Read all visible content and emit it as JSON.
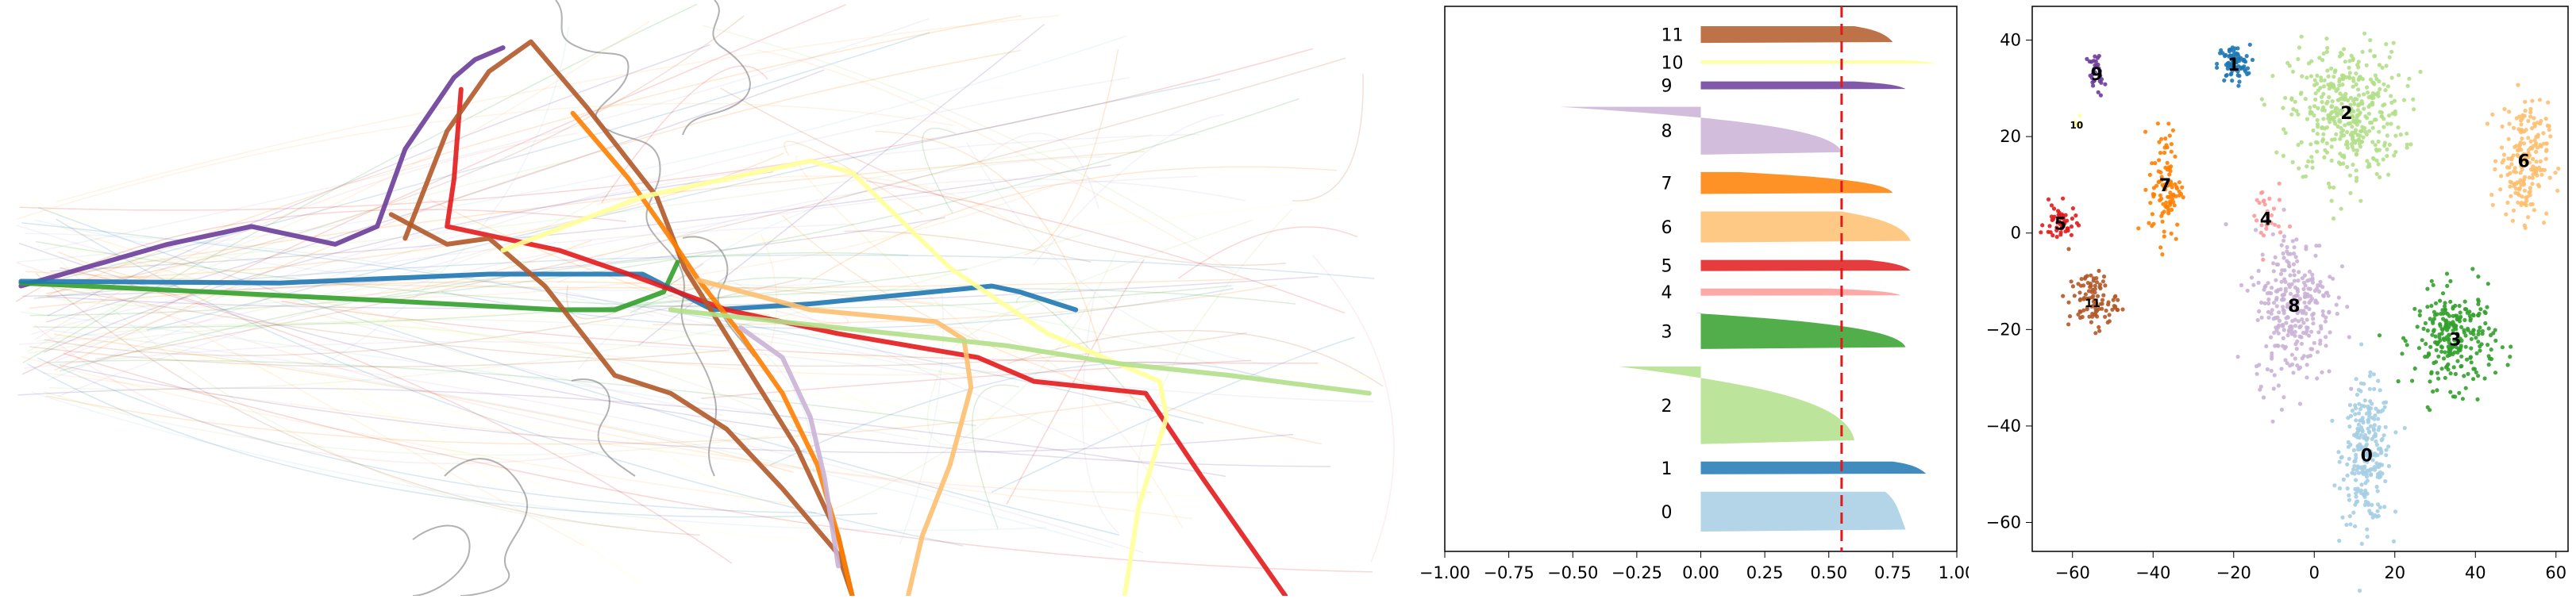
{
  "palette": {
    "0": "#a6cee3",
    "1": "#1f78b4",
    "2": "#b2df8a",
    "3": "#33a02c",
    "4": "#fb9a99",
    "5": "#e31a1c",
    "6": "#fdbf6f",
    "7": "#ff7f00",
    "8": "#cab2d6",
    "9": "#6a3d9a",
    "10": "#ffff99",
    "11": "#b15928"
  },
  "map_panel": {
    "coastline_color": "#9e9e9e",
    "highlighted_routes": [
      {
        "cluster": "9",
        "points": [
          [
            0.015,
            0.48
          ],
          [
            0.06,
            0.45
          ],
          [
            0.12,
            0.41
          ],
          [
            0.18,
            0.38
          ],
          [
            0.24,
            0.41
          ],
          [
            0.27,
            0.38
          ],
          [
            0.29,
            0.25
          ],
          [
            0.325,
            0.13
          ],
          [
            0.34,
            0.1
          ],
          [
            0.36,
            0.08
          ]
        ]
      },
      {
        "cluster": "3",
        "points": [
          [
            0.015,
            0.475
          ],
          [
            0.15,
            0.49
          ],
          [
            0.28,
            0.505
          ],
          [
            0.4,
            0.52
          ],
          [
            0.44,
            0.52
          ],
          [
            0.475,
            0.49
          ],
          [
            0.485,
            0.44
          ]
        ]
      },
      {
        "cluster": "1",
        "points": [
          [
            0.015,
            0.472
          ],
          [
            0.2,
            0.475
          ],
          [
            0.35,
            0.46
          ],
          [
            0.46,
            0.46
          ],
          [
            0.51,
            0.52
          ],
          [
            0.58,
            0.51
          ],
          [
            0.71,
            0.48
          ],
          [
            0.73,
            0.49
          ],
          [
            0.77,
            0.52
          ]
        ]
      },
      {
        "cluster": "5",
        "points": [
          [
            0.33,
            0.15
          ],
          [
            0.325,
            0.3
          ],
          [
            0.32,
            0.38
          ],
          [
            0.36,
            0.4
          ],
          [
            0.4,
            0.42
          ],
          [
            0.45,
            0.46
          ],
          [
            0.52,
            0.52
          ],
          [
            0.6,
            0.56
          ],
          [
            0.7,
            0.6
          ],
          [
            0.74,
            0.64
          ],
          [
            0.82,
            0.66
          ],
          [
            0.86,
            0.8
          ],
          [
            0.92,
            1.0
          ]
        ]
      },
      {
        "cluster": "11",
        "points": [
          [
            0.29,
            0.4
          ],
          [
            0.32,
            0.22
          ],
          [
            0.35,
            0.12
          ],
          [
            0.38,
            0.07
          ],
          [
            0.42,
            0.18
          ],
          [
            0.47,
            0.33
          ],
          [
            0.49,
            0.45
          ],
          [
            0.53,
            0.6
          ],
          [
            0.57,
            0.75
          ],
          [
            0.6,
            0.9
          ],
          [
            0.61,
            1.0
          ]
        ]
      },
      {
        "cluster": "11",
        "points": [
          [
            0.28,
            0.36
          ],
          [
            0.32,
            0.41
          ],
          [
            0.35,
            0.4
          ],
          [
            0.39,
            0.48
          ],
          [
            0.42,
            0.57
          ],
          [
            0.44,
            0.63
          ],
          [
            0.48,
            0.66
          ],
          [
            0.52,
            0.72
          ],
          [
            0.56,
            0.82
          ],
          [
            0.6,
            0.93
          ],
          [
            0.61,
            1.0
          ]
        ]
      },
      {
        "cluster": "7",
        "points": [
          [
            0.41,
            0.19
          ],
          [
            0.45,
            0.3
          ],
          [
            0.48,
            0.4
          ],
          [
            0.5,
            0.47
          ],
          [
            0.53,
            0.56
          ],
          [
            0.56,
            0.66
          ],
          [
            0.585,
            0.78
          ],
          [
            0.6,
            0.9
          ],
          [
            0.61,
            1.0
          ]
        ]
      },
      {
        "cluster": "10",
        "points": [
          [
            0.36,
            0.42
          ],
          [
            0.46,
            0.33
          ],
          [
            0.58,
            0.27
          ],
          [
            0.61,
            0.29
          ],
          [
            0.68,
            0.45
          ],
          [
            0.75,
            0.56
          ],
          [
            0.83,
            0.64
          ],
          [
            0.835,
            0.7
          ],
          [
            0.815,
            0.85
          ],
          [
            0.805,
            1.0
          ]
        ]
      },
      {
        "cluster": "6",
        "points": [
          [
            0.5,
            0.47
          ],
          [
            0.58,
            0.52
          ],
          [
            0.67,
            0.54
          ],
          [
            0.69,
            0.57
          ],
          [
            0.695,
            0.65
          ],
          [
            0.68,
            0.78
          ],
          [
            0.66,
            0.9
          ],
          [
            0.65,
            1.0
          ]
        ]
      },
      {
        "cluster": "2",
        "points": [
          [
            0.48,
            0.52
          ],
          [
            0.6,
            0.55
          ],
          [
            0.72,
            0.58
          ],
          [
            0.8,
            0.61
          ],
          [
            0.88,
            0.63
          ],
          [
            0.98,
            0.66
          ]
        ]
      },
      {
        "cluster": "8",
        "points": [
          [
            0.53,
            0.55
          ],
          [
            0.56,
            0.6
          ],
          [
            0.58,
            0.7
          ],
          [
            0.59,
            0.8
          ],
          [
            0.6,
            0.95
          ]
        ]
      }
    ]
  },
  "chart_data": [
    {
      "type": "bar",
      "subtype": "silhouette",
      "title": "",
      "xlabel": "",
      "ylabel": "",
      "xlim": [
        -1.0,
        1.0
      ],
      "x_ticks": [
        "−1.00",
        "−0.75",
        "−0.50",
        "−0.25",
        "0.00",
        "0.25",
        "0.50",
        "0.75",
        "1.00"
      ],
      "y_ticks": [],
      "average_silhouette_line": 0.55,
      "average_line_color": "#e31a1c",
      "clusters": [
        {
          "label": "0",
          "size": 100,
          "max": 0.8,
          "min": 0.72
        },
        {
          "label": "1",
          "size": 32,
          "max": 0.88,
          "min": 0.75
        },
        {
          "label": "2",
          "size": 195,
          "max": 0.6,
          "min": -0.32
        },
        {
          "label": "3",
          "size": 90,
          "max": 0.8,
          "min": -0.02
        },
        {
          "label": "4",
          "size": 18,
          "max": 0.78,
          "min": 0.5
        },
        {
          "label": "5",
          "size": 28,
          "max": 0.82,
          "min": 0.65
        },
        {
          "label": "6",
          "size": 78,
          "max": 0.82,
          "min": 0.55
        },
        {
          "label": "7",
          "size": 55,
          "max": 0.75,
          "min": 0.15
        },
        {
          "label": "8",
          "size": 120,
          "max": 0.55,
          "min": -0.55
        },
        {
          "label": "9",
          "size": 20,
          "max": 0.8,
          "min": 0.6
        },
        {
          "label": "10",
          "size": 9,
          "max": 0.92,
          "min": 0.8
        },
        {
          "label": "11",
          "size": 42,
          "max": 0.75,
          "min": 0.6
        }
      ]
    },
    {
      "type": "scatter",
      "title": "",
      "xlabel": "",
      "ylabel": "",
      "xlim": [
        -70,
        63
      ],
      "ylim": [
        -66,
        47
      ],
      "x_ticks": [
        "−60",
        "−40",
        "−20",
        "0",
        "20",
        "40",
        "60"
      ],
      "y_ticks": [
        "40",
        "20",
        "0",
        "−20",
        "−40",
        "−60"
      ],
      "x_tick_values": [
        -60,
        -40,
        -20,
        0,
        20,
        40,
        60
      ],
      "y_tick_values": [
        40,
        20,
        0,
        -20,
        -40,
        -60
      ],
      "clusters": [
        {
          "label": "0",
          "cx": 13,
          "cy": -46,
          "sx": 3,
          "sy": 7,
          "n": 260
        },
        {
          "label": "1",
          "cx": -20,
          "cy": 35,
          "sx": 2,
          "sy": 2,
          "n": 80
        },
        {
          "label": "2",
          "cx": 8,
          "cy": 25,
          "sx": 7,
          "sy": 7,
          "n": 420
        },
        {
          "label": "3",
          "cx": 35,
          "cy": -22,
          "sx": 5,
          "sy": 5,
          "n": 260
        },
        {
          "label": "4",
          "cx": -12,
          "cy": 3,
          "sx": 2,
          "sy": 4,
          "n": 30
        },
        {
          "label": "5",
          "cx": -63,
          "cy": 2,
          "sx": 2,
          "sy": 2,
          "n": 50
        },
        {
          "label": "6",
          "cx": 52,
          "cy": 15,
          "sx": 3,
          "sy": 6,
          "n": 200
        },
        {
          "label": "7",
          "cx": -37,
          "cy": 10,
          "sx": 2,
          "sy": 6,
          "n": 100
        },
        {
          "label": "8",
          "cx": -5,
          "cy": -15,
          "sx": 5,
          "sy": 8,
          "n": 300
        },
        {
          "label": "9",
          "cx": -54,
          "cy": 33,
          "sx": 1,
          "sy": 2,
          "n": 30
        },
        {
          "label": "10",
          "cx": -59,
          "cy": 23,
          "sx": 0.5,
          "sy": 0.5,
          "n": 6
        },
        {
          "label": "11",
          "cx": -55,
          "cy": -14,
          "sx": 3,
          "sy": 3,
          "n": 100
        }
      ]
    }
  ]
}
